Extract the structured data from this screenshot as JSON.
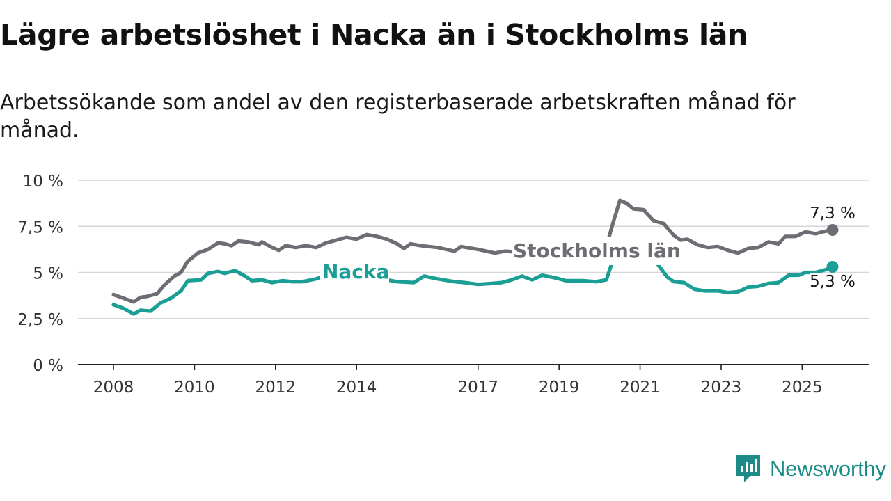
{
  "title": "Lägre arbetslöshet i Nacka än i Stockholms län",
  "subtitle": "Arbetssökande som andel av den registerbaserade arbetskraften månad för månad.",
  "brand": {
    "name": "Newsworthy",
    "color": "#1d8b87"
  },
  "chart_data": {
    "type": "line",
    "x_axis": {
      "tick_labels": [
        "2008",
        "2010",
        "2012",
        "2014",
        "2017",
        "2019",
        "2021",
        "2023",
        "2025"
      ],
      "range": [
        "2008-01",
        "2025-10"
      ]
    },
    "y_axis": {
      "tick_labels": [
        "0 %",
        "2,5 %",
        "5 %",
        "7,5 %",
        "10 %"
      ],
      "ticks": [
        0,
        2.5,
        5,
        7.5,
        10
      ],
      "range": [
        0,
        10
      ],
      "grid": true
    },
    "series": [
      {
        "name": "Stockholms län",
        "color": "#6e6d73",
        "end_label": "7,3 %",
        "points": [
          [
            "2008-01",
            3.8
          ],
          [
            "2008-04",
            3.6
          ],
          [
            "2008-07",
            3.4
          ],
          [
            "2008-09",
            3.65
          ],
          [
            "2008-11",
            3.7
          ],
          [
            "2009-02",
            3.85
          ],
          [
            "2009-04",
            4.3
          ],
          [
            "2009-07",
            4.8
          ],
          [
            "2009-09",
            5.0
          ],
          [
            "2009-11",
            5.6
          ],
          [
            "2010-02",
            6.05
          ],
          [
            "2010-05",
            6.25
          ],
          [
            "2010-08",
            6.6
          ],
          [
            "2010-10",
            6.55
          ],
          [
            "2010-12",
            6.45
          ],
          [
            "2011-02",
            6.7
          ],
          [
            "2011-05",
            6.65
          ],
          [
            "2011-08",
            6.5
          ],
          [
            "2011-09",
            6.65
          ],
          [
            "2011-12",
            6.35
          ],
          [
            "2012-02",
            6.2
          ],
          [
            "2012-04",
            6.45
          ],
          [
            "2012-07",
            6.35
          ],
          [
            "2012-10",
            6.45
          ],
          [
            "2013-01",
            6.35
          ],
          [
            "2013-04",
            6.6
          ],
          [
            "2013-07",
            6.75
          ],
          [
            "2013-10",
            6.9
          ],
          [
            "2014-01",
            6.8
          ],
          [
            "2014-04",
            7.05
          ],
          [
            "2014-07",
            6.95
          ],
          [
            "2014-10",
            6.8
          ],
          [
            "2015-01",
            6.55
          ],
          [
            "2015-03",
            6.3
          ],
          [
            "2015-05",
            6.55
          ],
          [
            "2015-08",
            6.45
          ],
          [
            "2016-01",
            6.35
          ],
          [
            "2016-06",
            6.15
          ],
          [
            "2016-08",
            6.4
          ],
          [
            "2017-01",
            6.25
          ],
          [
            "2017-06",
            6.05
          ],
          [
            "2017-09",
            6.15
          ],
          [
            "2018-01",
            6.1
          ],
          [
            "2018-04",
            6.15
          ],
          [
            "2018-08",
            6.05
          ],
          [
            "2019-01",
            6.2
          ],
          [
            "2019-06",
            6.15
          ],
          [
            "2019-09",
            6.1
          ],
          [
            "2020-01",
            6.15
          ],
          [
            "2020-03",
            6.4
          ],
          [
            "2020-05",
            7.7
          ],
          [
            "2020-07",
            8.9
          ],
          [
            "2020-09",
            8.75
          ],
          [
            "2020-11",
            8.45
          ],
          [
            "2021-02",
            8.4
          ],
          [
            "2021-05",
            7.8
          ],
          [
            "2021-08",
            7.65
          ],
          [
            "2021-11",
            7.0
          ],
          [
            "2022-01",
            6.75
          ],
          [
            "2022-03",
            6.8
          ],
          [
            "2022-06",
            6.5
          ],
          [
            "2022-09",
            6.35
          ],
          [
            "2022-12",
            6.4
          ],
          [
            "2023-03",
            6.2
          ],
          [
            "2023-06",
            6.05
          ],
          [
            "2023-09",
            6.3
          ],
          [
            "2023-12",
            6.35
          ],
          [
            "2024-03",
            6.65
          ],
          [
            "2024-06",
            6.55
          ],
          [
            "2024-08",
            6.95
          ],
          [
            "2024-11",
            6.95
          ],
          [
            "2025-02",
            7.2
          ],
          [
            "2025-05",
            7.1
          ],
          [
            "2025-07",
            7.2
          ],
          [
            "2025-10",
            7.3
          ]
        ]
      },
      {
        "name": "Nacka",
        "color": "#1b9e95",
        "end_label": "5,3 %",
        "points": [
          [
            "2008-01",
            3.25
          ],
          [
            "2008-04",
            3.05
          ],
          [
            "2008-07",
            2.75
          ],
          [
            "2008-09",
            2.95
          ],
          [
            "2008-12",
            2.9
          ],
          [
            "2009-03",
            3.35
          ],
          [
            "2009-06",
            3.6
          ],
          [
            "2009-09",
            4.0
          ],
          [
            "2009-11",
            4.55
          ],
          [
            "2010-03",
            4.6
          ],
          [
            "2010-05",
            4.95
          ],
          [
            "2010-08",
            5.05
          ],
          [
            "2010-10",
            4.95
          ],
          [
            "2011-01",
            5.1
          ],
          [
            "2011-04",
            4.8
          ],
          [
            "2011-06",
            4.55
          ],
          [
            "2011-09",
            4.6
          ],
          [
            "2011-12",
            4.45
          ],
          [
            "2012-03",
            4.55
          ],
          [
            "2012-06",
            4.5
          ],
          [
            "2012-09",
            4.5
          ],
          [
            "2013-01",
            4.65
          ],
          [
            "2013-04",
            4.85
          ],
          [
            "2013-07",
            4.95
          ],
          [
            "2014-01",
            4.85
          ],
          [
            "2014-07",
            4.7
          ],
          [
            "2015-01",
            4.5
          ],
          [
            "2015-06",
            4.45
          ],
          [
            "2015-09",
            4.8
          ],
          [
            "2016-01",
            4.65
          ],
          [
            "2016-06",
            4.5
          ],
          [
            "2016-09",
            4.45
          ],
          [
            "2017-01",
            4.35
          ],
          [
            "2017-05",
            4.4
          ],
          [
            "2017-08",
            4.45
          ],
          [
            "2017-11",
            4.6
          ],
          [
            "2018-02",
            4.8
          ],
          [
            "2018-05",
            4.6
          ],
          [
            "2018-08",
            4.85
          ],
          [
            "2018-12",
            4.7
          ],
          [
            "2019-03",
            4.55
          ],
          [
            "2019-08",
            4.55
          ],
          [
            "2019-12",
            4.5
          ],
          [
            "2020-03",
            4.6
          ],
          [
            "2020-05",
            5.7
          ],
          [
            "2020-07",
            6.8
          ],
          [
            "2020-09",
            6.75
          ],
          [
            "2020-12",
            6.3
          ],
          [
            "2021-03",
            5.7
          ],
          [
            "2021-06",
            5.5
          ],
          [
            "2021-09",
            4.75
          ],
          [
            "2021-11",
            4.5
          ],
          [
            "2022-02",
            4.45
          ],
          [
            "2022-05",
            4.1
          ],
          [
            "2022-08",
            4.0
          ],
          [
            "2022-12",
            4.0
          ],
          [
            "2023-03",
            3.9
          ],
          [
            "2023-06",
            3.95
          ],
          [
            "2023-09",
            4.2
          ],
          [
            "2023-12",
            4.25
          ],
          [
            "2024-03",
            4.4
          ],
          [
            "2024-06",
            4.45
          ],
          [
            "2024-09",
            4.85
          ],
          [
            "2024-12",
            4.85
          ],
          [
            "2025-02",
            5.0
          ],
          [
            "2025-05",
            5.0
          ],
          [
            "2025-08",
            5.15
          ],
          [
            "2025-10",
            5.3
          ]
        ]
      }
    ]
  }
}
